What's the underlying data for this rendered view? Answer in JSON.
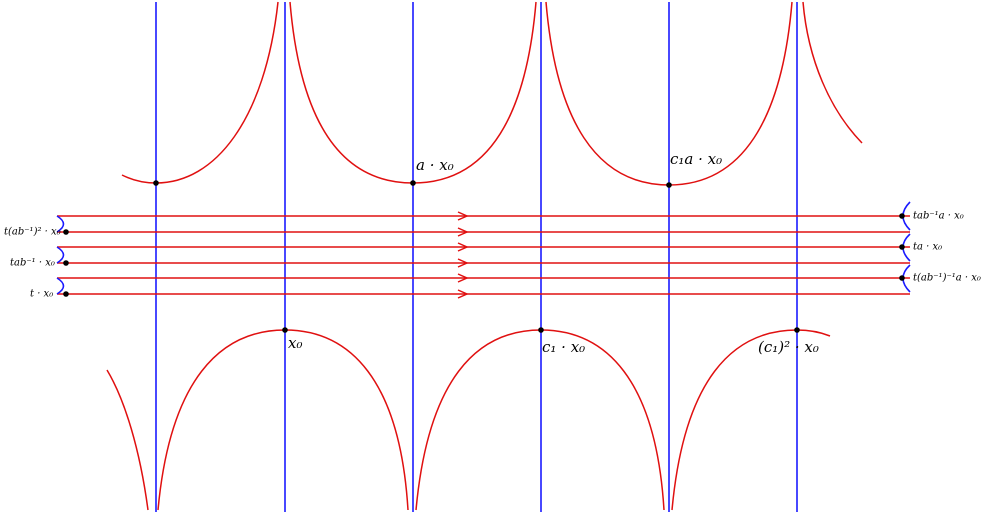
{
  "labels": {
    "x0": "x₀",
    "c1x0": "c₁ · x₀",
    "c1sqx0": "(c₁)² · x₀",
    "ax0": "a · x₀",
    "c1ax0": "c₁a · x₀",
    "left_top": "t(ab⁻¹)² · x₀",
    "left_mid": "tab⁻¹ · x₀",
    "left_bot": "t · x₀",
    "right_top": "tab⁻¹a · x₀",
    "right_mid": "ta · x₀",
    "right_bot": "t(ab⁻¹)⁻¹a · x₀"
  }
}
